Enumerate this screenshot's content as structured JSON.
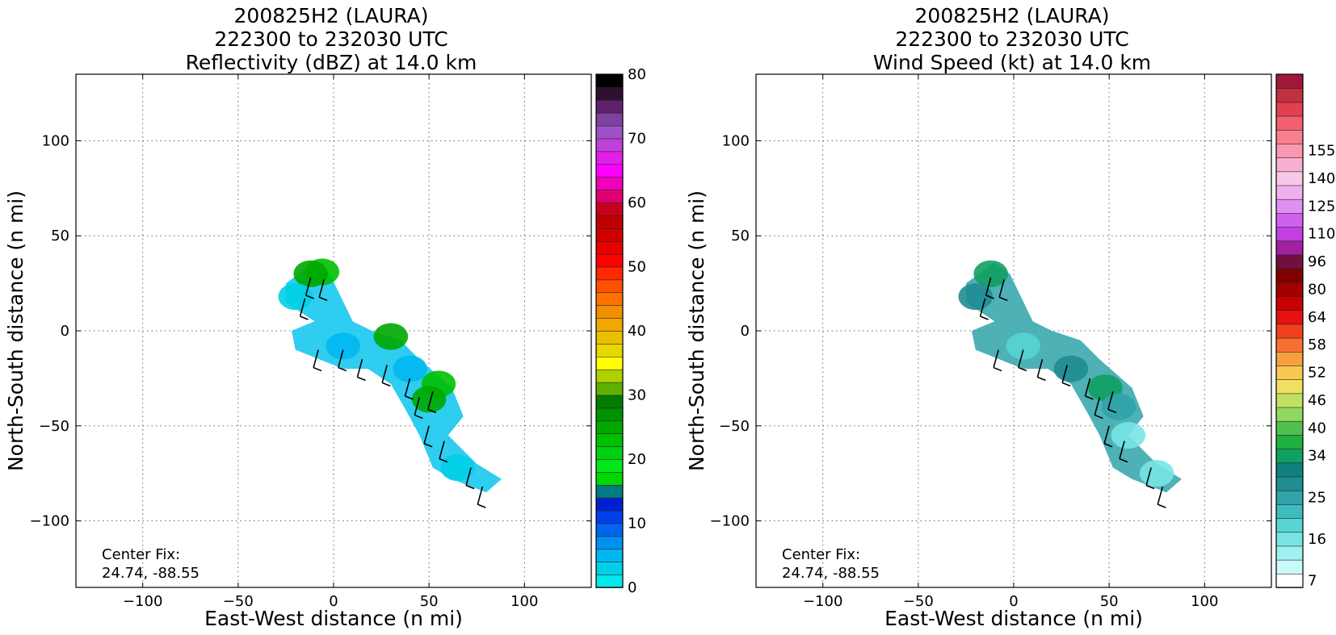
{
  "chart_data": [
    {
      "type": "heatmap",
      "title_lines": [
        "200825H2 (LAURA)",
        "222300 to 232030 UTC",
        "Reflectivity (dBZ) at 14.0 km"
      ],
      "xlabel": "East-West distance (n mi)",
      "ylabel": "North-South distance (n mi)",
      "xlim": [
        -135,
        135
      ],
      "ylim": [
        -135,
        135
      ],
      "xticks": [
        -100,
        -50,
        0,
        50,
        100
      ],
      "yticks": [
        -100,
        -50,
        0,
        50,
        100
      ],
      "xtick_labels": [
        "−100",
        "−50",
        "0",
        "50",
        "100"
      ],
      "ytick_labels": [
        "−100",
        "−50",
        "0",
        "50",
        "100"
      ],
      "grid": true,
      "annotation": [
        "Center Fix:",
        "24.74, -88.55"
      ],
      "colorbar": {
        "levels": [
          0,
          80
        ],
        "step": 5,
        "tick_values": [
          0,
          10,
          20,
          30,
          40,
          50,
          60,
          70,
          80
        ],
        "tick_labels": [
          "0",
          "10",
          "20",
          "30",
          "40",
          "50",
          "60",
          "70",
          "80"
        ],
        "colors": [
          "#00e8e8",
          "#00d0e6",
          "#00b8f0",
          "#0090f0",
          "#0066f0",
          "#0040e8",
          "#0020d0",
          "#007b80",
          "#00d800",
          "#00e81c",
          "#00d012",
          "#00c000",
          "#00a800",
          "#009200",
          "#007c00",
          "#60b000",
          "#b0d000",
          "#ffff00",
          "#e8d800",
          "#e8c000",
          "#f0a800",
          "#f09000",
          "#ff7200",
          "#ff5000",
          "#ff2800",
          "#ff0000",
          "#e80000",
          "#d00000",
          "#c00000",
          "#c80020",
          "#e00070",
          "#f000b8",
          "#ff00ff",
          "#e020e8",
          "#c040d8",
          "#a050c8",
          "#8040a0",
          "#602070",
          "#301030",
          "#000000"
        ]
      },
      "fields": [
        {
          "x": -6,
          "y": 31,
          "value": 22
        },
        {
          "x": -12,
          "y": 30,
          "value": 25
        },
        {
          "x": -20,
          "y": 18,
          "value": 3
        },
        {
          "x": 5,
          "y": -8,
          "value": 4
        },
        {
          "x": 30,
          "y": -3,
          "value": 25
        },
        {
          "x": 40,
          "y": -20,
          "value": 5
        },
        {
          "x": 55,
          "y": -28,
          "value": 22
        },
        {
          "x": 50,
          "y": -36,
          "value": 24
        },
        {
          "x": 65,
          "y": -72,
          "value": 3
        }
      ]
    },
    {
      "type": "heatmap",
      "title_lines": [
        "200825H2 (LAURA)",
        "222300 to 232030 UTC",
        "Wind Speed (kt) at 14.0 km"
      ],
      "xlabel": "East-West distance (n mi)",
      "ylabel": "North-South distance (n mi)",
      "xlim": [
        -135,
        135
      ],
      "ylim": [
        -135,
        135
      ],
      "xticks": [
        -100,
        -50,
        0,
        50,
        100
      ],
      "yticks": [
        -100,
        -50,
        0,
        50,
        100
      ],
      "xtick_labels": [
        "−100",
        "−50",
        "0",
        "50",
        "100"
      ],
      "ytick_labels": [
        "−100",
        "−50",
        "0",
        "50",
        "100"
      ],
      "grid": true,
      "annotation": [
        "Center Fix:",
        "24.74, -88.55"
      ],
      "colorbar": {
        "tick_labels": [
          "7",
          "16",
          "25",
          "34",
          "40",
          "46",
          "52",
          "58",
          "64",
          "80",
          "96",
          "110",
          "125",
          "140",
          "155"
        ],
        "tick_index": [
          0,
          3,
          6,
          9,
          11,
          13,
          15,
          17,
          19,
          21,
          23,
          25,
          27,
          29,
          31
        ],
        "colors": [
          "#ffffff",
          "#c8fafa",
          "#a0f0f0",
          "#78e4e4",
          "#58d4d4",
          "#40bcc0",
          "#30a4a8",
          "#208c94",
          "#108080",
          "#10a060",
          "#20b040",
          "#50c050",
          "#90d860",
          "#c0e060",
          "#f0e060",
          "#f8c850",
          "#f8a040",
          "#f87030",
          "#f04020",
          "#e81010",
          "#c80000",
          "#a00000",
          "#800000",
          "#701040",
          "#a020a0",
          "#c040e0",
          "#d060f0",
          "#e090f0",
          "#f0b0f0",
          "#f8c8e8",
          "#f8b0d0",
          "#f898b0",
          "#f87f8c",
          "#f06070",
          "#e04050",
          "#c03040",
          "#a01838"
        ]
      },
      "fields": [
        {
          "x": -12,
          "y": 30,
          "value": 40
        },
        {
          "x": -20,
          "y": 18,
          "value": 30
        },
        {
          "x": 5,
          "y": -8,
          "value": 18
        },
        {
          "x": 30,
          "y": -20,
          "value": 28
        },
        {
          "x": 48,
          "y": -30,
          "value": 40
        },
        {
          "x": 55,
          "y": -40,
          "value": 25
        },
        {
          "x": 60,
          "y": -55,
          "value": 15
        },
        {
          "x": 75,
          "y": -75,
          "value": 12
        }
      ]
    }
  ]
}
